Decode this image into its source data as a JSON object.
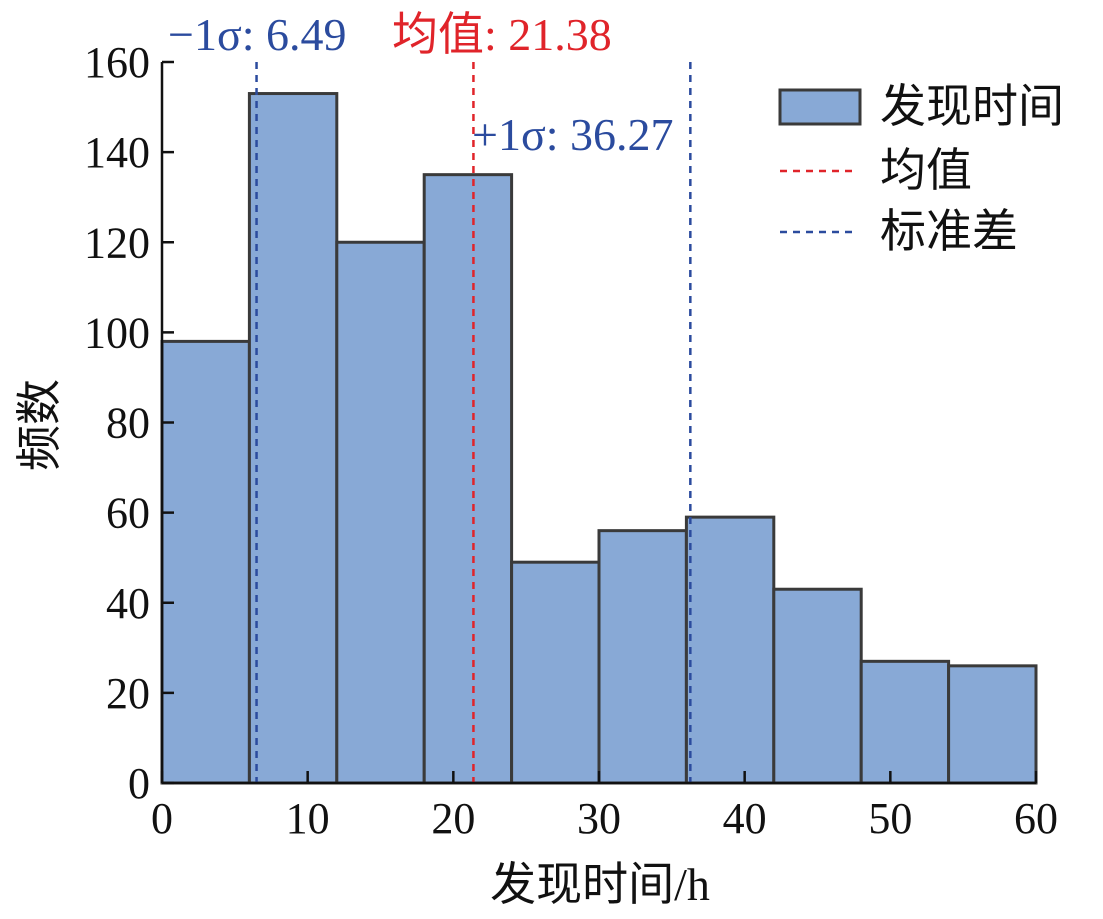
{
  "chart_data": {
    "type": "bar",
    "bin_edges": [
      0,
      6,
      12,
      18,
      24,
      30,
      36,
      42,
      48,
      54,
      60
    ],
    "values": [
      98,
      153,
      120,
      135,
      49,
      56,
      59,
      43,
      27,
      26
    ],
    "xlabel": "发现时间/h",
    "ylabel": "频数",
    "xlim": [
      0,
      60
    ],
    "ylim": [
      0,
      160
    ],
    "x_ticks": [
      0,
      10,
      20,
      30,
      40,
      50,
      60
    ],
    "y_ticks": [
      0,
      20,
      40,
      60,
      80,
      100,
      120,
      140,
      160
    ],
    "grid": false,
    "legend_position": "top-right",
    "series": [
      {
        "name": "发现时间",
        "color": "#88a9d6",
        "edge_color": "#3a3a3a"
      }
    ],
    "reference_lines": [
      {
        "name": "均值",
        "x": 21.38,
        "color": "#e0242a",
        "style": "dashed",
        "label": "均值: 21.38"
      },
      {
        "name": "标准差",
        "x": 6.49,
        "color": "#2b4b9e",
        "style": "dashed",
        "label": "−1σ: 6.49"
      },
      {
        "name": "标准差",
        "x": 36.27,
        "color": "#2b4b9e",
        "style": "dashed",
        "label": "+1σ: 36.27"
      }
    ],
    "legend": [
      {
        "label": "发现时间",
        "kind": "patch"
      },
      {
        "label": "均值",
        "kind": "line-red"
      },
      {
        "label": "标准差",
        "kind": "line-blue"
      }
    ]
  }
}
